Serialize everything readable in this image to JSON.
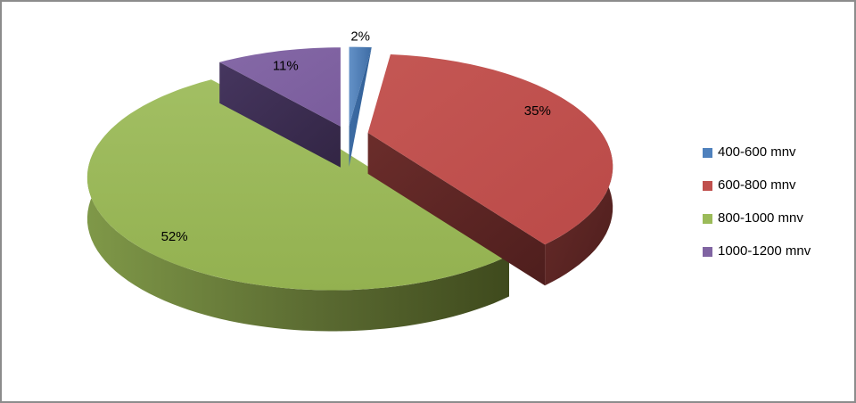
{
  "chart_data": {
    "type": "pie",
    "style": "3d-exploded-pie",
    "title": "",
    "labels": [
      "400-600 mnv",
      "600-800 mnv",
      "800-1000 mnv",
      "1000-1200 mnv"
    ],
    "values": [
      2,
      35,
      52,
      11
    ],
    "data_labels": [
      "2%",
      "35%",
      "52%",
      "11%"
    ],
    "slice_colors": [
      "#4F81BD",
      "#C0504D",
      "#9BBB59",
      "#8064A2"
    ],
    "slice_side_colors": [
      "#33629B",
      "#5C2624",
      "#55652C",
      "#3A2C52"
    ],
    "start_angle_deg": 0,
    "direction": "clockwise",
    "legend_position": "right",
    "background_color": "#FFFFFF",
    "border_color": "#8C8C8C",
    "label_color": "#000000"
  }
}
